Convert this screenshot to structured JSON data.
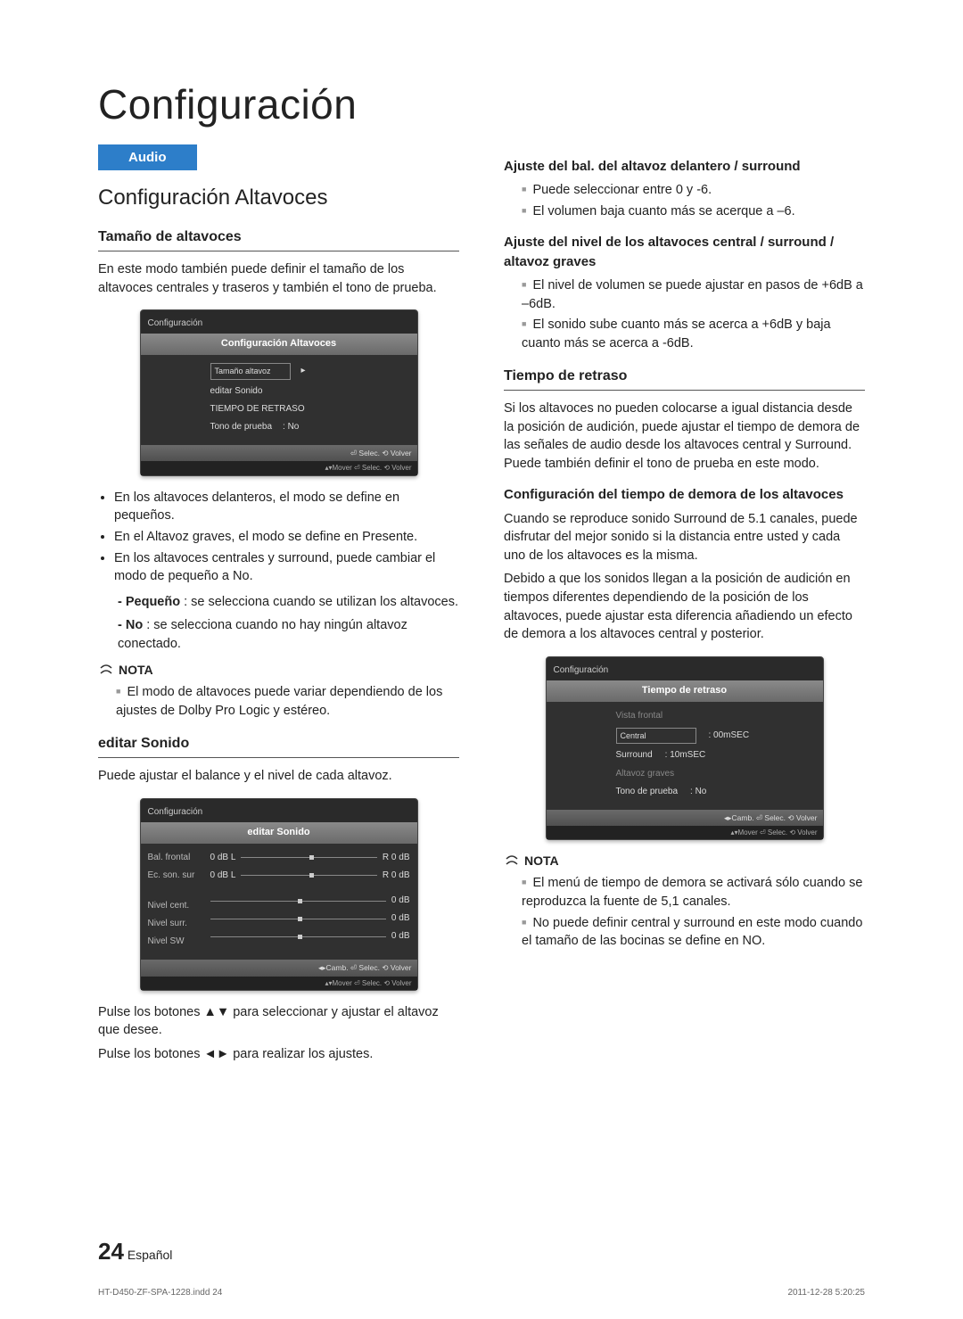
{
  "page_title": "Configuración",
  "tag": "Audio",
  "h2": "Configuración Altavoces",
  "left": {
    "h3_size": "Tamaño de altavoces",
    "intro": "En este modo también puede definir el tamaño de los altavoces centrales y traseros y también el tono de prueba.",
    "bullets": [
      "En los altavoces delanteros, el modo se define en pequeños.",
      "En el Altavoz graves, el modo se define en Presente.",
      "En los altavoces centrales y surround, puede cambiar el modo de pequeño a No."
    ],
    "sub_pequeno_lbl": "- Pequeño",
    "sub_pequeno_txt": " : se selecciona cuando se utilizan los altavoces.",
    "sub_no_lbl": "- No",
    "sub_no_txt": " : se selecciona cuando no hay ningún altavoz conectado.",
    "nota": "NOTA",
    "nota_items": [
      "El modo de altavoces puede variar dependiendo de los ajustes de Dolby Pro Logic y estéreo."
    ],
    "h3_edit": "editar Sonido",
    "edit_txt": "Puede ajustar el balance y el nivel de cada altavoz.",
    "tail1": "Pulse los botones ▲▼ para seleccionar y ajustar el altavoz que desee.",
    "tail2": "Pulse los botones ◄► para realizar los ajustes."
  },
  "right": {
    "h4_bal": "Ajuste del bal. del altavoz delantero / surround",
    "bal_items": [
      "Puede seleccionar entre 0 y -6.",
      "El volumen baja cuanto más se acerque a –6."
    ],
    "h4_level": "Ajuste del nivel de los altavoces central / surround / altavoz graves",
    "level_items": [
      "El nivel de volumen se puede ajustar en pasos de +6dB a –6dB.",
      "El sonido sube cuanto más se acerca a +6dB y baja cuanto más se acerca a -6dB."
    ],
    "h3_delay": "Tiempo de retraso",
    "delay_p": "Si los altavoces no pueden colocarse a igual distancia desde la posición de audición, puede ajustar el tiempo de demora de las señales de audio desde los altavoces central y Surround. Puede también definir el tono de prueba en este modo.",
    "h4_cfg": "Configuración del tiempo de demora de los altavoces",
    "cfg_p1": "Cuando se reproduce sonido Surround de 5.1 canales, puede disfrutar del mejor sonido si la distancia entre usted y cada uno de los altavoces es la misma.",
    "cfg_p2": "Debido a que los sonidos llegan a la posición de audición en tiempos diferentes dependiendo de la posición de los altavoces, puede ajustar esta diferencia añadiendo un efecto de demora a los altavoces central y posterior.",
    "nota": "NOTA",
    "nota_items": [
      "El menú de tiempo de demora se activará sólo cuando se reproduzca la fuente de 5,1 canales.",
      "No puede definir central y surround en este modo cuando el tamaño de las bocinas se define en NO."
    ]
  },
  "osd1": {
    "crumb": "Configuración",
    "title": "Configuración Altavoces",
    "items": [
      {
        "label": "Tamaño altavoz",
        "sel": true,
        "val": "▸"
      },
      {
        "label": "editar Sonido"
      },
      {
        "label": "TIEMPO DE RETRASO"
      },
      {
        "label": "Tono de prueba",
        "val": ":   No"
      }
    ],
    "foot": "⏎ Selec.    ⟲ Volver",
    "foot2": "▴▾Mover   ⏎ Selec.   ⟲ Volver"
  },
  "osd2": {
    "crumb": "Configuración",
    "title": "editar Sonido",
    "rows_slider": [
      {
        "l": "Bal. frontal",
        "a": "0 dB L",
        "b": "R 0 dB"
      },
      {
        "l": "Ec. son. sur",
        "a": "0 dB L",
        "b": "R 0 dB"
      }
    ],
    "rows_level": [
      {
        "l": "Nivel cent.",
        "v": "0 dB"
      },
      {
        "l": "Nivel surr.",
        "v": "0 dB"
      },
      {
        "l": "Nivel SW",
        "v": "0 dB"
      }
    ],
    "foot": "◂▸Camb.  ⏎ Selec.    ⟲ Volver",
    "foot2": "▴▾Mover   ⏎ Selec.   ⟲ Volver"
  },
  "osd3": {
    "crumb": "Configuración",
    "title": "Tiempo de retraso",
    "items": [
      {
        "label": "Vista frontal",
        "dim": true
      },
      {
        "label": "Central",
        "val": ":   00mSEC",
        "sel": true
      },
      {
        "label": "Surround",
        "val": ":   10mSEC"
      },
      {
        "label": "Altavoz graves",
        "dim": true
      },
      {
        "label": "Tono de prueba",
        "val": ": No"
      }
    ],
    "foot": "◂▸Camb.  ⏎ Selec.    ⟲ Volver",
    "foot2": "▴▾Mover   ⏎ Selec.   ⟲ Volver"
  },
  "footer": {
    "pg": "24",
    "lang": "Español"
  },
  "print": {
    "l": "HT-D450-ZF-SPA-1228.indd   24",
    "r": "2011-12-28      5:20:25"
  }
}
